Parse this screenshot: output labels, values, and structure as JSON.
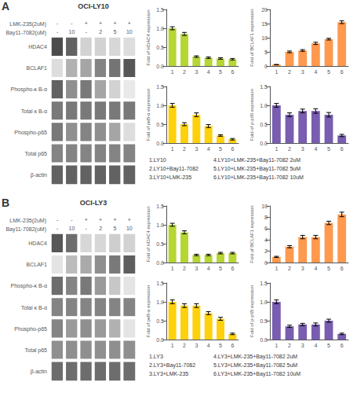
{
  "chart_data": [
    {
      "type": "heatmap",
      "title": "OCI-LY10",
      "annotations": [
        "A"
      ],
      "x_rows": [
        {
          "label": "LMK-235(2uM)",
          "values": [
            "-",
            "-",
            "+",
            "+",
            "+",
            "+"
          ]
        },
        {
          "label": "Bay11-7082(uM)",
          "values": [
            "-",
            "10",
            "-",
            "2",
            "5",
            "10"
          ]
        }
      ],
      "y_categories": [
        "HDAC4",
        "BCLAF1",
        "Phospho-κ B-α",
        "Total κ B-α",
        "Phospho-p65",
        "Total p65",
        "β-actin"
      ],
      "cells": [
        [
          0.8,
          0.7,
          0.2,
          0.2,
          0.18,
          0.15
        ],
        [
          0.15,
          0.35,
          0.4,
          0.55,
          0.62,
          0.75
        ],
        [
          0.7,
          0.5,
          0.6,
          0.4,
          0.2,
          0.1
        ],
        [
          0.6,
          0.6,
          0.6,
          0.6,
          0.6,
          0.6
        ],
        [
          0.6,
          0.5,
          0.55,
          0.5,
          0.4,
          0.15
        ],
        [
          0.55,
          0.55,
          0.55,
          0.55,
          0.55,
          0.55
        ],
        [
          0.7,
          0.7,
          0.7,
          0.7,
          0.7,
          0.7
        ]
      ],
      "color_range": [
        0,
        1
      ]
    },
    {
      "type": "bar",
      "ylabel": "Fold of HDAC4 expression",
      "categories": [
        "1",
        "2",
        "3",
        "4",
        "5",
        "6"
      ],
      "values": [
        1.0,
        0.85,
        0.25,
        0.22,
        0.2,
        0.18
      ],
      "errors": [
        0.04,
        0.04,
        0.02,
        0.02,
        0.02,
        0.02
      ],
      "ylim": [
        0,
        1.5
      ],
      "yticks": [
        {
          "value": 0,
          "label": "0.0"
        },
        0.5,
        {
          "value": 1,
          "label": "1.0"
        },
        1.5
      ],
      "grid": false
    },
    {
      "type": "bar",
      "ylabel": "Fold of BCLAF1 expression",
      "categories": [
        "1",
        "2",
        "3",
        "4",
        "5",
        "6"
      ],
      "values": [
        0.5,
        5.0,
        5.5,
        8.0,
        9.5,
        15.5
      ],
      "errors": [
        0.05,
        0.3,
        0.3,
        0.4,
        0.3,
        0.5
      ],
      "ylim": [
        0,
        20
      ],
      "yticks": [
        0,
        5,
        10,
        15,
        20
      ],
      "grid": false
    },
    {
      "type": "bar",
      "ylabel": "Fold of pκB-α expression",
      "categories": [
        "1",
        "2",
        "3",
        "4",
        "5",
        "6"
      ],
      "values": [
        1.0,
        0.5,
        0.75,
        0.45,
        0.2,
        0.1
      ],
      "errors": [
        0.05,
        0.04,
        0.05,
        0.04,
        0.02,
        0.02
      ],
      "ylim": [
        0,
        1.5
      ],
      "yticks": [
        {
          "value": 0,
          "label": "0.0"
        },
        0.5,
        {
          "value": 1,
          "label": "1.0"
        },
        1.5
      ],
      "grid": false
    },
    {
      "type": "bar",
      "ylabel": "Fold of p-p65 expression",
      "categories": [
        "1",
        "2",
        "3",
        "4",
        "5",
        "6"
      ],
      "values": [
        1.0,
        0.75,
        0.85,
        0.85,
        0.75,
        0.2
      ],
      "errors": [
        0.05,
        0.05,
        0.05,
        0.06,
        0.06,
        0.03
      ],
      "ylim": [
        0,
        1.5
      ],
      "yticks": [
        {
          "value": 0,
          "label": "0.0"
        },
        0.5,
        {
          "value": 1,
          "label": "1.0"
        },
        1.5
      ],
      "grid": false
    },
    {
      "type": "text",
      "annotations": [
        "1.LY10",
        "2.LY10+Bay11-7082",
        "3.LY10+LMK-235",
        "4.LY10+LMK-235+Bay11-7082 2uM",
        "5.LY10+LMK-235+Bay11-7082 5uM",
        "6.LY10+LMK-235+Bay11-7082 10uM"
      ]
    },
    {
      "type": "heatmap",
      "title": "OCI-LY3",
      "annotations": [
        "B"
      ],
      "x_rows": [
        {
          "label": "LMK-235(2uM)",
          "values": [
            "-",
            "-",
            "+",
            "+",
            "+",
            "+"
          ]
        },
        {
          "label": "Bay11-7082(uM)",
          "values": [
            "-",
            "10",
            "-",
            "2",
            "5",
            "10"
          ]
        }
      ],
      "y_categories": [
        "HDAC4",
        "BCLAF1",
        "Phospho-κ B-α",
        "Total κ B-α",
        "Phospho-p65",
        "Total p65",
        "β-actin"
      ],
      "cells": [
        [
          0.75,
          0.65,
          0.18,
          0.18,
          0.22,
          0.2
        ],
        [
          0.12,
          0.3,
          0.38,
          0.5,
          0.6,
          0.72
        ],
        [
          0.65,
          0.55,
          0.6,
          0.45,
          0.25,
          0.12
        ],
        [
          0.55,
          0.55,
          0.55,
          0.55,
          0.55,
          0.55
        ],
        [
          0.55,
          0.45,
          0.5,
          0.45,
          0.35,
          0.12
        ],
        [
          0.5,
          0.5,
          0.5,
          0.5,
          0.5,
          0.5
        ],
        [
          0.65,
          0.65,
          0.65,
          0.65,
          0.65,
          0.65
        ]
      ],
      "color_range": [
        0,
        1
      ]
    },
    {
      "type": "bar",
      "ylabel": "Fold of HDAC4 expression",
      "categories": [
        "1",
        "2",
        "3",
        "4",
        "5",
        "6"
      ],
      "values": [
        1.0,
        0.8,
        0.2,
        0.2,
        0.25,
        0.25
      ],
      "errors": [
        0.04,
        0.04,
        0.02,
        0.02,
        0.02,
        0.02
      ],
      "ylim": [
        0,
        1.5
      ],
      "yticks": [
        {
          "value": 0,
          "label": "0.0"
        },
        0.5,
        {
          "value": 1,
          "label": "1.0"
        },
        1.5
      ],
      "grid": false
    },
    {
      "type": "bar",
      "ylabel": "Fold of BCLAF1 expression",
      "categories": [
        "1",
        "2",
        "3",
        "4",
        "5",
        "6"
      ],
      "values": [
        1.0,
        2.8,
        4.5,
        4.5,
        7.0,
        8.5
      ],
      "errors": [
        0.1,
        0.2,
        0.3,
        0.3,
        0.3,
        0.4
      ],
      "ylim": [
        0,
        10
      ],
      "yticks": [
        0,
        2,
        4,
        6,
        8,
        10
      ],
      "grid": false
    },
    {
      "type": "bar",
      "ylabel": "Fold of pκB-α expression",
      "categories": [
        "1",
        "2",
        "3",
        "4",
        "5",
        "6"
      ],
      "values": [
        1.0,
        0.9,
        0.9,
        0.7,
        0.55,
        0.15
      ],
      "errors": [
        0.05,
        0.05,
        0.05,
        0.04,
        0.04,
        0.02
      ],
      "ylim": [
        0,
        1.5
      ],
      "yticks": [
        {
          "value": 0,
          "label": "0.0"
        },
        0.5,
        {
          "value": 1,
          "label": "1.0"
        },
        1.5
      ],
      "grid": false
    },
    {
      "type": "bar",
      "ylabel": "Fold of p-p65 expression",
      "categories": [
        "1",
        "2",
        "3",
        "4",
        "5",
        "6"
      ],
      "values": [
        1.0,
        0.35,
        0.4,
        0.4,
        0.5,
        0.15
      ],
      "errors": [
        0.05,
        0.03,
        0.03,
        0.04,
        0.04,
        0.02
      ],
      "ylim": [
        0,
        1.5
      ],
      "yticks": [
        {
          "value": 0,
          "label": "0.0"
        },
        0.5,
        {
          "value": 1,
          "label": "1.0"
        },
        1.5
      ],
      "grid": false
    },
    {
      "type": "text",
      "annotations": [
        "1.LY3",
        "2.LY3+Bay11-7082",
        "3.LY3+LMK-235",
        "4.LY3+LMK-235+Bay11-7082 2uM",
        "5.LY3+LMK-235+Bay11-7082 5uM",
        "6.LY3+LMK-235+Bay11-7082 10uM"
      ]
    }
  ]
}
